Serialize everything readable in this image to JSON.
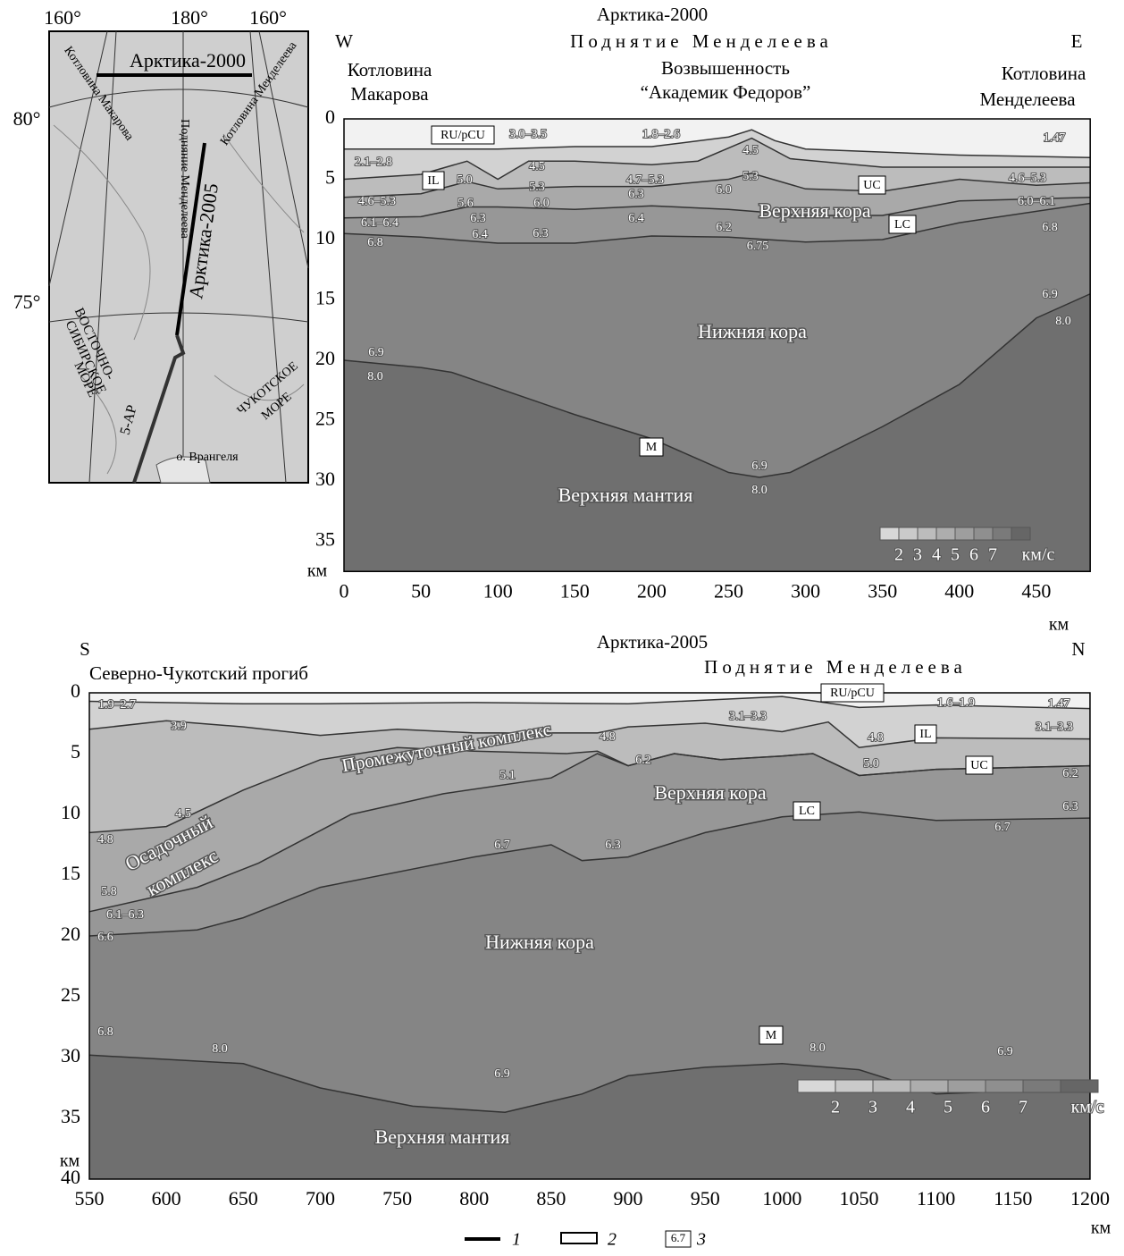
{
  "map": {
    "lon_labels": [
      "160°",
      "180°",
      "160°"
    ],
    "lat_labels": [
      "80°",
      "75°"
    ],
    "labels": [
      "Арктика-2000",
      "Котловина Макарова",
      "Подняние Менделеева",
      "Котловина Менделеева",
      "Арктика-2005",
      "ВОСТОЧНО-",
      "СИБИРСКОЕ",
      "МОРЕ",
      "ЧУКОТСКОЕ",
      "МОРЕ",
      "5-АР",
      "о. Врангеля"
    ]
  },
  "top": {
    "title": "Арктика-2000",
    "subtitle": "Поднятие Менделеева",
    "west": "W",
    "east": "E",
    "regions": [
      "Котловина",
      "Макарова",
      "Возвышенность",
      "“Академик Федоров”",
      "Котловина",
      "Менделеева"
    ],
    "labels": [
      "3.0–3.5",
      "1.8–2.6",
      "4.5",
      "1.47",
      "2.1–2.8",
      "5.0",
      "4.5",
      "4.7–5.3",
      "5.3",
      "4.6–5.3",
      "5.3",
      "4.6–5.3",
      "5.6",
      "6.0",
      "6.3",
      "6.0",
      "6.0–6.1",
      "6.3",
      "6.1–6.4",
      "6.4",
      "6.2",
      "6.8",
      "6.8",
      "6.4",
      "6.3",
      "6.75",
      "6.9",
      "8.0",
      "6.9",
      "8.0",
      "6.9",
      "8.0"
    ],
    "layer_names": [
      "Верхняя кора",
      "Нижняя кора",
      "Верхняя мантия"
    ],
    "boxed": [
      "RU/pCU",
      "IL",
      "UC",
      "LC",
      "M"
    ],
    "y_ticks": [
      0,
      5,
      10,
      15,
      20,
      25,
      30,
      35
    ],
    "x_ticks": [
      0,
      50,
      100,
      150,
      200,
      250,
      300,
      350,
      400,
      450
    ],
    "y_unit": "км",
    "x_unit": "км",
    "colorbar": {
      "ticks": [
        2,
        3,
        4,
        5,
        6,
        7
      ],
      "unit": "км/с"
    }
  },
  "bottom": {
    "title": "Арктика-2005",
    "subtitle": "Поднятие Менделеева",
    "south": "S",
    "north": "N",
    "region": "Северно-Чукотский прогиб",
    "labels": [
      "1.9–2.7",
      "1.47",
      "1.6–1.9",
      "3.9",
      "3.1–3.3",
      "4.8",
      "4.8",
      "3.1–3.3",
      "6.2",
      "5.1",
      "5.0",
      "6.2",
      "4.5",
      "6.3",
      "4.8",
      "6.7",
      "6.3",
      "6.7",
      "5.8",
      "6.1–6.3",
      "6.6",
      "6.8",
      "8.0",
      "8.0",
      "6.9",
      "6.9"
    ],
    "layer_names": [
      "Промежуточный комплекс",
      "Верхняя кора",
      "Осадочный",
      "комплекс",
      "Нижняя кора",
      "Верхняя мантия"
    ],
    "boxed": [
      "RU/pCU",
      "IL",
      "UC",
      "LC",
      "M"
    ],
    "y_ticks": [
      0,
      5,
      10,
      15,
      20,
      25,
      30,
      35,
      40
    ],
    "x_ticks": [
      550,
      600,
      650,
      700,
      750,
      800,
      850,
      900,
      950,
      1000,
      1050,
      1100,
      1150,
      1200
    ],
    "y_unit": "км",
    "x_unit": "км",
    "colorbar": {
      "ticks": [
        2,
        3,
        4,
        5,
        6,
        7
      ],
      "unit": "км/с"
    }
  },
  "legend": {
    "items": [
      "1",
      "2",
      "3"
    ],
    "sample": "6.7"
  }
}
